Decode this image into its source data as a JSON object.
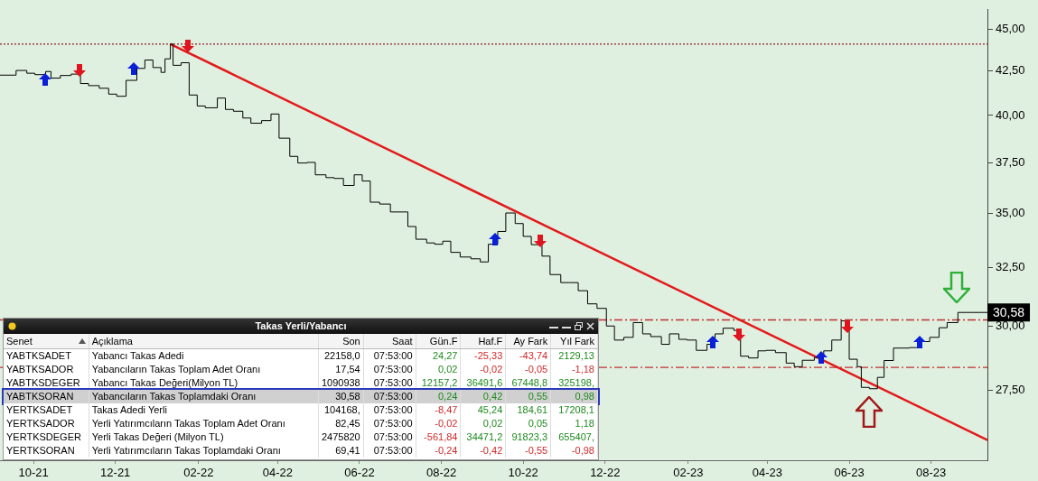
{
  "chart_data": [
    {
      "type": "step",
      "series": [
        {
          "type": "step",
          "color": "#000000",
          "x": [
            "2021-09-06",
            "2021-09-18",
            "2021-09-26",
            "2021-10-02",
            "2021-10-10",
            "2021-10-14",
            "2021-10-21",
            "2021-10-29",
            "2021-11-05",
            "2021-11-11",
            "2021-11-19",
            "2021-11-26",
            "2021-12-02",
            "2021-12-09",
            "2021-12-17",
            "2021-12-23",
            "2021-12-29",
            "2022-01-04",
            "2022-01-07",
            "2022-01-11",
            "2022-01-13",
            "2022-01-19",
            "2022-01-25",
            "2022-01-31",
            "2022-02-06",
            "2022-02-15",
            "2022-02-21",
            "2022-02-27",
            "2022-03-06",
            "2022-03-12",
            "2022-03-20",
            "2022-03-27",
            "2022-04-02",
            "2022-04-10",
            "2022-04-16",
            "2022-04-23",
            "2022-04-29",
            "2022-05-07",
            "2022-05-13",
            "2022-05-20",
            "2022-05-28",
            "2022-06-03",
            "2022-06-09",
            "2022-06-16",
            "2022-06-24",
            "2022-06-30",
            "2022-07-07",
            "2022-07-13",
            "2022-07-21",
            "2022-07-27",
            "2022-08-02",
            "2022-08-08",
            "2022-08-15",
            "2022-08-23",
            "2022-08-30",
            "2022-09-05",
            "2022-09-12",
            "2022-09-18",
            "2022-09-25",
            "2022-10-01",
            "2022-10-07",
            "2022-10-15",
            "2022-10-21",
            "2022-10-29",
            "2022-11-04",
            "2022-11-11",
            "2022-11-18",
            "2022-11-25",
            "2022-12-02",
            "2022-12-08",
            "2022-12-15",
            "2022-12-22",
            "2022-12-29",
            "2023-01-04",
            "2023-01-12",
            "2023-01-18",
            "2023-01-25",
            "2023-01-31",
            "2023-02-07",
            "2023-02-15",
            "2023-02-21",
            "2023-02-27",
            "2023-03-07",
            "2023-03-12",
            "2023-03-18",
            "2023-03-25",
            "2023-03-31",
            "2023-04-07",
            "2023-04-15",
            "2023-04-21",
            "2023-04-27",
            "2023-05-06",
            "2023-05-13",
            "2023-05-19",
            "2023-05-26",
            "2023-06-01",
            "2023-06-07",
            "2023-06-10",
            "2023-06-16",
            "2023-06-22",
            "2023-06-27",
            "2023-07-04",
            "2023-07-16",
            "2023-07-23",
            "2023-07-31",
            "2023-08-07",
            "2023-08-13",
            "2023-08-21",
            "2023-09-12"
          ],
          "values": [
            42.26,
            42.53,
            42.37,
            42.29,
            42.47,
            42.09,
            42.24,
            42.32,
            41.78,
            41.66,
            41.51,
            41.18,
            41.06,
            41.96,
            42.65,
            43.14,
            42.7,
            42.42,
            43.21,
            44.09,
            42.83,
            42.98,
            41.13,
            40.52,
            40.42,
            40.96,
            40.33,
            40.23,
            39.86,
            39.58,
            39.72,
            40.08,
            38.78,
            37.83,
            37.49,
            37.52,
            36.89,
            36.75,
            36.71,
            36.36,
            36.89,
            36.58,
            35.54,
            35.45,
            35.07,
            35.07,
            34.38,
            33.79,
            33.62,
            33.56,
            33.7,
            33.19,
            32.98,
            32.9,
            32.76,
            33.56,
            34.15,
            35.02,
            34.52,
            33.92,
            33.54,
            33.02,
            32.2,
            31.85,
            31.85,
            31.5,
            30.94,
            30.75,
            30.02,
            29.45,
            29.56,
            30.16,
            29.7,
            29.59,
            29.28,
            29.7,
            29.48,
            29.45,
            29.04,
            29.28,
            29.7,
            29.93,
            29.84,
            28.81,
            28.74,
            29.02,
            29.04,
            28.95,
            28.54,
            28.4,
            28.65,
            28.76,
            29.02,
            29.45,
            30.23,
            28.69,
            28.4,
            27.61,
            27.56,
            27.99,
            28.64,
            29.13,
            29.15,
            29.39,
            29.56,
            29.95,
            30.16,
            30.58,
            30.58
          ]
        },
        {
          "type": "line",
          "color": "#e31a1c",
          "x": [
            "2022-01-11",
            "2023-09-12"
          ],
          "values": [
            44.09,
            25.7
          ]
        }
      ],
      "xlim": [
        "2021-09-06",
        "2023-09-12"
      ],
      "xticks": [
        {
          "value": "2021-10-01",
          "label": "10-21"
        },
        {
          "value": "2021-12-01",
          "label": "12-21"
        },
        {
          "value": "2022-02-01",
          "label": "02-22"
        },
        {
          "value": "2022-04-01",
          "label": "04-22"
        },
        {
          "value": "2022-06-01",
          "label": "06-22"
        },
        {
          "value": "2022-08-01",
          "label": "08-22"
        },
        {
          "value": "2022-10-01",
          "label": "10-22"
        },
        {
          "value": "2022-12-01",
          "label": "12-22"
        },
        {
          "value": "2023-02-01",
          "label": "02-23"
        },
        {
          "value": "2023-04-01",
          "label": "04-23"
        },
        {
          "value": "2023-06-01",
          "label": "06-23"
        },
        {
          "value": "2023-08-01",
          "label": "08-23"
        }
      ],
      "ylim": [
        25,
        46.2
      ],
      "yticks": [
        {
          "value": 27.5,
          "label": "27,50"
        },
        {
          "value": 30,
          "label": "30,00"
        },
        {
          "value": 32.5,
          "label": "32,50"
        },
        {
          "value": 35,
          "label": "35,00"
        },
        {
          "value": 37.5,
          "label": "37,50"
        },
        {
          "value": 40,
          "label": "40,00"
        },
        {
          "value": 42.5,
          "label": "42,50"
        },
        {
          "value": 45,
          "label": "45,00"
        }
      ],
      "log": "y",
      "marker": "none",
      "ref_lines": [
        {
          "axis": "y",
          "value": 44.09,
          "color": "#8b1a2a",
          "line_style": "dotted"
        },
        {
          "axis": "y",
          "value": 30.27,
          "color": "#c03030",
          "line_style": "dashed"
        },
        {
          "axis": "y",
          "value": 28.37,
          "color": "#c03030",
          "line_style": "dashed"
        }
      ],
      "annotations": [
        {
          "text": "30,58",
          "x": "2023-09-12",
          "y": 30.58
        }
      ]
    },
    {
      "type": "other",
      "title": "Takas Yerli/Yabancı",
      "categories": [
        "Senet",
        "Açıklama",
        "Son",
        "Saat",
        "Gün.F",
        "Haf.F",
        "Ay Fark",
        "Yıl Fark"
      ],
      "cell_labels": [
        [
          "YABTKSADET",
          "Yabancı Takas Adedi",
          "22158,0",
          "07:53:00",
          "24,27",
          "-25,33",
          "-43,74",
          "2129,13"
        ],
        [
          "YABTKSADOR",
          "Yabancıların Takas Toplam Adet Oranı",
          "17,54",
          "07:53:00",
          "0,02",
          "-0,02",
          "-0,05",
          "-1,18"
        ],
        [
          "YABTKSDEGER",
          "Yabancı Takas Değeri(Milyon TL)",
          "1090938",
          "07:53:00",
          "12157,2",
          "36491,6",
          "67448,8",
          "325198,"
        ],
        [
          "YABTKSORAN",
          "Yabancıların Takas Toplamdaki Oranı",
          "30,58",
          "07:53:00",
          "0,24",
          "0,42",
          "0,55",
          "0,98"
        ],
        [
          "YERTKSADET",
          "Takas Adedi Yerli",
          "104168,",
          "07:53:00",
          "-8,47",
          "45,24",
          "184,61",
          "17208,1"
        ],
        [
          "YERTKSADOR",
          "Yerli Yatırımcıların Takas Toplam Adet Oranı",
          "82,45",
          "07:53:00",
          "-0,02",
          "0,02",
          "0,05",
          "1,18"
        ],
        [
          "YERTKSDEGER",
          "Yerli Takas Değeri (Milyon TL)",
          "2475820",
          "07:53:00",
          "-561,84",
          "34471,2",
          "91823,3",
          "655407,"
        ],
        [
          "YERTKSORAN",
          "Yerli Yatırımcıların Takas Toplamdaki Oranı",
          "69,41",
          "07:53:00",
          "-0,24",
          "-0,42",
          "-0,55",
          "-0,98"
        ]
      ]
    }
  ]
}
